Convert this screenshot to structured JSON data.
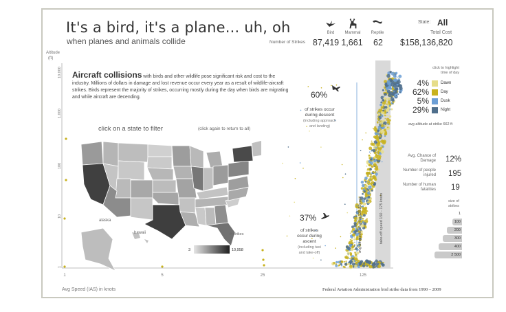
{
  "header": {
    "title": "It's a bird, it's a plane... uh, oh",
    "subtitle": "when planes and animals collide"
  },
  "strikes": {
    "row_label": "Number of Strikes",
    "bird": {
      "label": "Bird",
      "value": "87,419"
    },
    "mammal": {
      "label": "Mammal",
      "value": "1,661"
    },
    "reptile": {
      "label": "Reptile",
      "value": "62"
    }
  },
  "state": {
    "label": "State:",
    "value": "All",
    "cost_label": "Total Cost",
    "cost_value": "$158,136,820"
  },
  "description": {
    "heading": "Aircraft collisions",
    "body": "with birds and other wildlife pose significant risk and cost to the industry. Millions of dollars in damage and lost revenue occur every year as a result of wildlife-aircraft strikes. Birds represent the majority of strikes, occurring mostly during the day when birds are migrating and while aircraft are decending."
  },
  "map": {
    "filter_prompt": "click on a state to filter",
    "return_prompt": "(click again to return to all)",
    "alaska": "alaska",
    "hawaii": "hawaii",
    "strikes_label": "# strikes",
    "legend_min": "3",
    "legend_max": "10,958"
  },
  "descent": {
    "pct": "60%",
    "text1": "of strikes occur",
    "text2": "during descent",
    "note1": "(including approach",
    "note2": "and landing)"
  },
  "ascent": {
    "pct": "37%",
    "text1": "of strikes",
    "text2": "occur during",
    "text3": "ascent",
    "note1": "(including taxi",
    "note2": "and take-off)"
  },
  "time_of_day": {
    "hint1": "click to highlight",
    "hint2": "time of day",
    "items": [
      {
        "pct": "4%",
        "label": "Dawn",
        "color": "#e6dd8a"
      },
      {
        "pct": "62%",
        "label": "Day",
        "color": "#c8b21e"
      },
      {
        "pct": "5%",
        "label": "Dusk",
        "color": "#6c9fd6"
      },
      {
        "pct": "29%",
        "label": "Night",
        "color": "#4f6f8c"
      }
    ],
    "avg_altitude": "avg altitude at strike 662 ft"
  },
  "stats": {
    "damage_label1": "Avg. Chance of",
    "damage_label2": "Damage",
    "damage_value": "12%",
    "injured_label1": "Number of people",
    "injured_label2": "injured",
    "injured_value": "195",
    "fatal_label1": "Number of human",
    "fatal_label2": "fatalities",
    "fatal_value": "19"
  },
  "size_legend": {
    "title1": "size of",
    "title2": "strikes",
    "items": [
      "1",
      "100",
      "200",
      "300",
      "400",
      "2 500"
    ]
  },
  "chart": {
    "y_label1": "Altitude",
    "y_label2": "(ft)",
    "y_ticks": [
      "10,000",
      "1,000",
      "100",
      "10",
      "1"
    ],
    "x_ticks": [
      "1",
      "5",
      "25",
      "125"
    ],
    "x_label": "Avg Speed (IAS) in knots",
    "airspeed_annot": "avg airspeed at strike 125.6 knots",
    "takeoff_annot": "take-off speed 150 - 175 knots",
    "source": "Federal Aviation Administration bird strike data from 1990 – 2009"
  },
  "colors": {
    "day": "#c8b21e",
    "dawn": "#e6dd8a",
    "dusk": "#6c9fd6",
    "night": "#4f6f8c",
    "band": "#d9d9d9"
  }
}
